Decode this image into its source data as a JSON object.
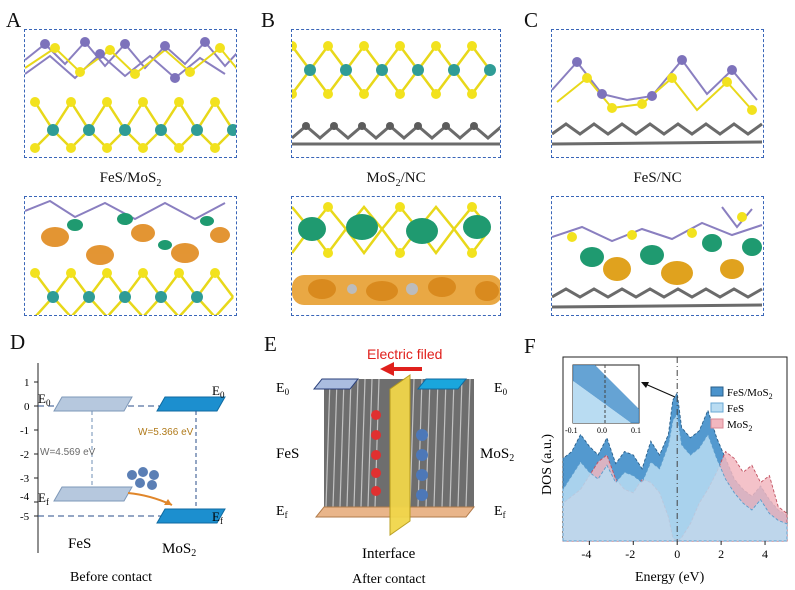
{
  "panels": {
    "A": {
      "letter": "A",
      "caption_main": "FeS/MoS",
      "caption_sub": "2"
    },
    "B": {
      "letter": "B",
      "caption_main": "MoS",
      "caption_sub": "2",
      "caption_tail": "/NC"
    },
    "C": {
      "letter": "C",
      "caption_main": "FeS/NC"
    },
    "D": {
      "letter": "D",
      "e0_main": "E",
      "e0_sub": "0",
      "ef_main": "E",
      "ef_sub": "f",
      "right_e0_main": "E",
      "right_e0_sub": "0",
      "right_ef_main": "E",
      "right_ef_sub": "f",
      "w_fes": "W=4.569 eV",
      "w_mos2": "W=5.366 eV",
      "label_fes": "FeS",
      "label_mos2_main": "MoS",
      "label_mos2_sub": "2",
      "caption": "Before contact",
      "y_ticks": [
        "1",
        "0",
        "-1",
        "-2",
        "-3",
        "-4",
        "-5"
      ]
    },
    "E": {
      "letter": "E",
      "field_label": "Electric filed",
      "left_e0_main": "E",
      "left_e0_sub": "0",
      "right_e0_main": "E",
      "right_e0_sub": "0",
      "left_ef_main": "E",
      "left_ef_sub": "f",
      "right_ef_main": "E",
      "right_ef_sub": "f",
      "label_fes": "FeS",
      "label_mos2_main": "MoS",
      "label_mos2_sub": "2",
      "interface_label": "Interface",
      "caption": "After contact"
    },
    "F": {
      "letter": "F",
      "ylabel": "DOS (a.u.)",
      "xlabel": "Energy (eV)",
      "legend": [
        {
          "name_main": "FeS/MoS",
          "name_sub": "2",
          "color": "#4a93cc"
        },
        {
          "name_main": "FeS",
          "name_sub": "",
          "color": "#b9dcf2"
        },
        {
          "name_main": "MoS",
          "name_sub": "2",
          "color": "#f2b7bf"
        }
      ],
      "inset_ticks": [
        "-0.1",
        "0.0",
        "0.1"
      ]
    }
  },
  "chart_data": {
    "type": "area",
    "xlabel": "Energy (eV)",
    "ylabel": "DOS (a.u.)",
    "xlim": [
      -5.2,
      5
    ],
    "x_ticks": [
      -4,
      -2,
      0,
      2,
      4
    ],
    "x": [
      -5.2,
      -4.8,
      -4.4,
      -4.0,
      -3.6,
      -3.2,
      -2.8,
      -2.4,
      -2.0,
      -1.6,
      -1.2,
      -0.8,
      -0.4,
      -0.2,
      0.0,
      0.2,
      0.6,
      1.0,
      1.4,
      1.8,
      2.2,
      2.6,
      3.0,
      3.4,
      3.8,
      4.2,
      4.6,
      5.0
    ],
    "series": [
      {
        "name": "FeS/MoS2",
        "color": "#4a93cc",
        "values": [
          0.48,
          0.52,
          0.62,
          0.55,
          0.5,
          0.6,
          0.45,
          0.52,
          0.5,
          0.42,
          0.58,
          0.5,
          0.62,
          0.82,
          0.86,
          0.66,
          0.6,
          0.64,
          0.76,
          0.6,
          0.48,
          0.36,
          0.3,
          0.26,
          0.32,
          0.24,
          0.18,
          0.15
        ]
      },
      {
        "name": "FeS",
        "color": "#b9dcf2",
        "values": [
          0.3,
          0.38,
          0.46,
          0.4,
          0.36,
          0.44,
          0.34,
          0.4,
          0.38,
          0.34,
          0.46,
          0.42,
          0.56,
          0.7,
          0.74,
          0.56,
          0.5,
          0.54,
          0.62,
          0.48,
          0.36,
          0.28,
          0.22,
          0.18,
          0.24,
          0.16,
          0.12,
          0.1
        ]
      },
      {
        "name": "MoS2",
        "color": "#f2b7bf",
        "values": [
          0.22,
          0.26,
          0.3,
          0.38,
          0.46,
          0.5,
          0.36,
          0.3,
          0.28,
          0.36,
          0.34,
          0.28,
          0.14,
          0.02,
          0.0,
          0.02,
          0.1,
          0.22,
          0.3,
          0.4,
          0.52,
          0.48,
          0.4,
          0.44,
          0.34,
          0.38,
          0.2,
          0.16
        ]
      }
    ]
  }
}
